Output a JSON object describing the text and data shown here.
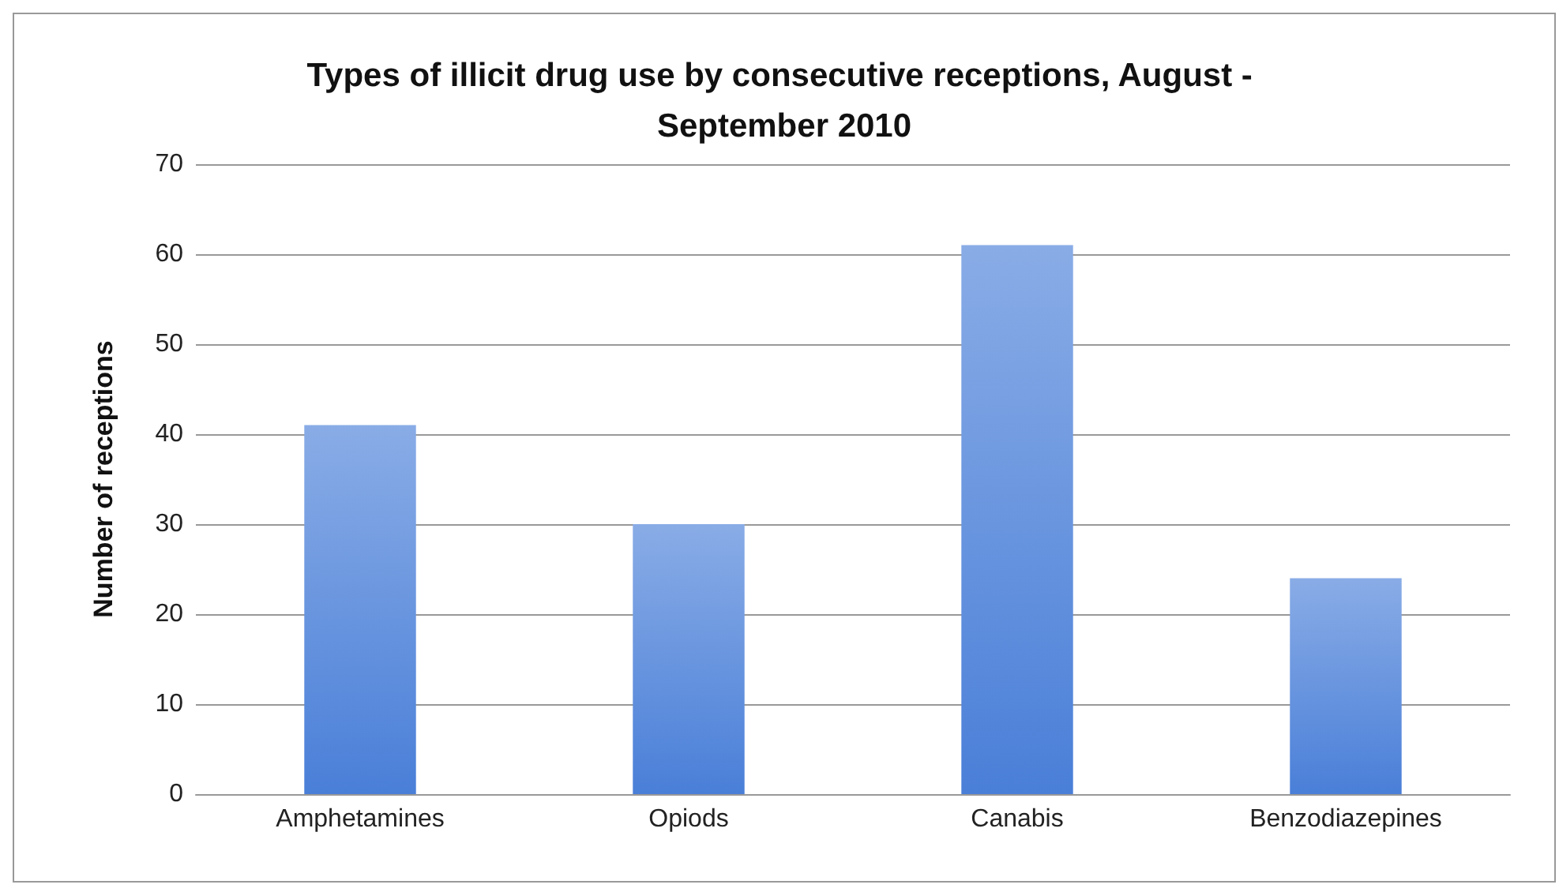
{
  "chart_data": {
    "type": "bar",
    "title": "Types of illicit drug use by consecutive receptions, August - September 2010",
    "ylabel": "Number of receptions",
    "categories": [
      "Amphetamines",
      "Opiods",
      "Canabis",
      "Benzodiazepines"
    ],
    "values": [
      41,
      30,
      61,
      24
    ],
    "color": "#4a7fd8",
    "ylim": [
      0,
      70
    ],
    "yticks": [
      0,
      10,
      20,
      30,
      40,
      50,
      60,
      70
    ],
    "grid": "y"
  }
}
